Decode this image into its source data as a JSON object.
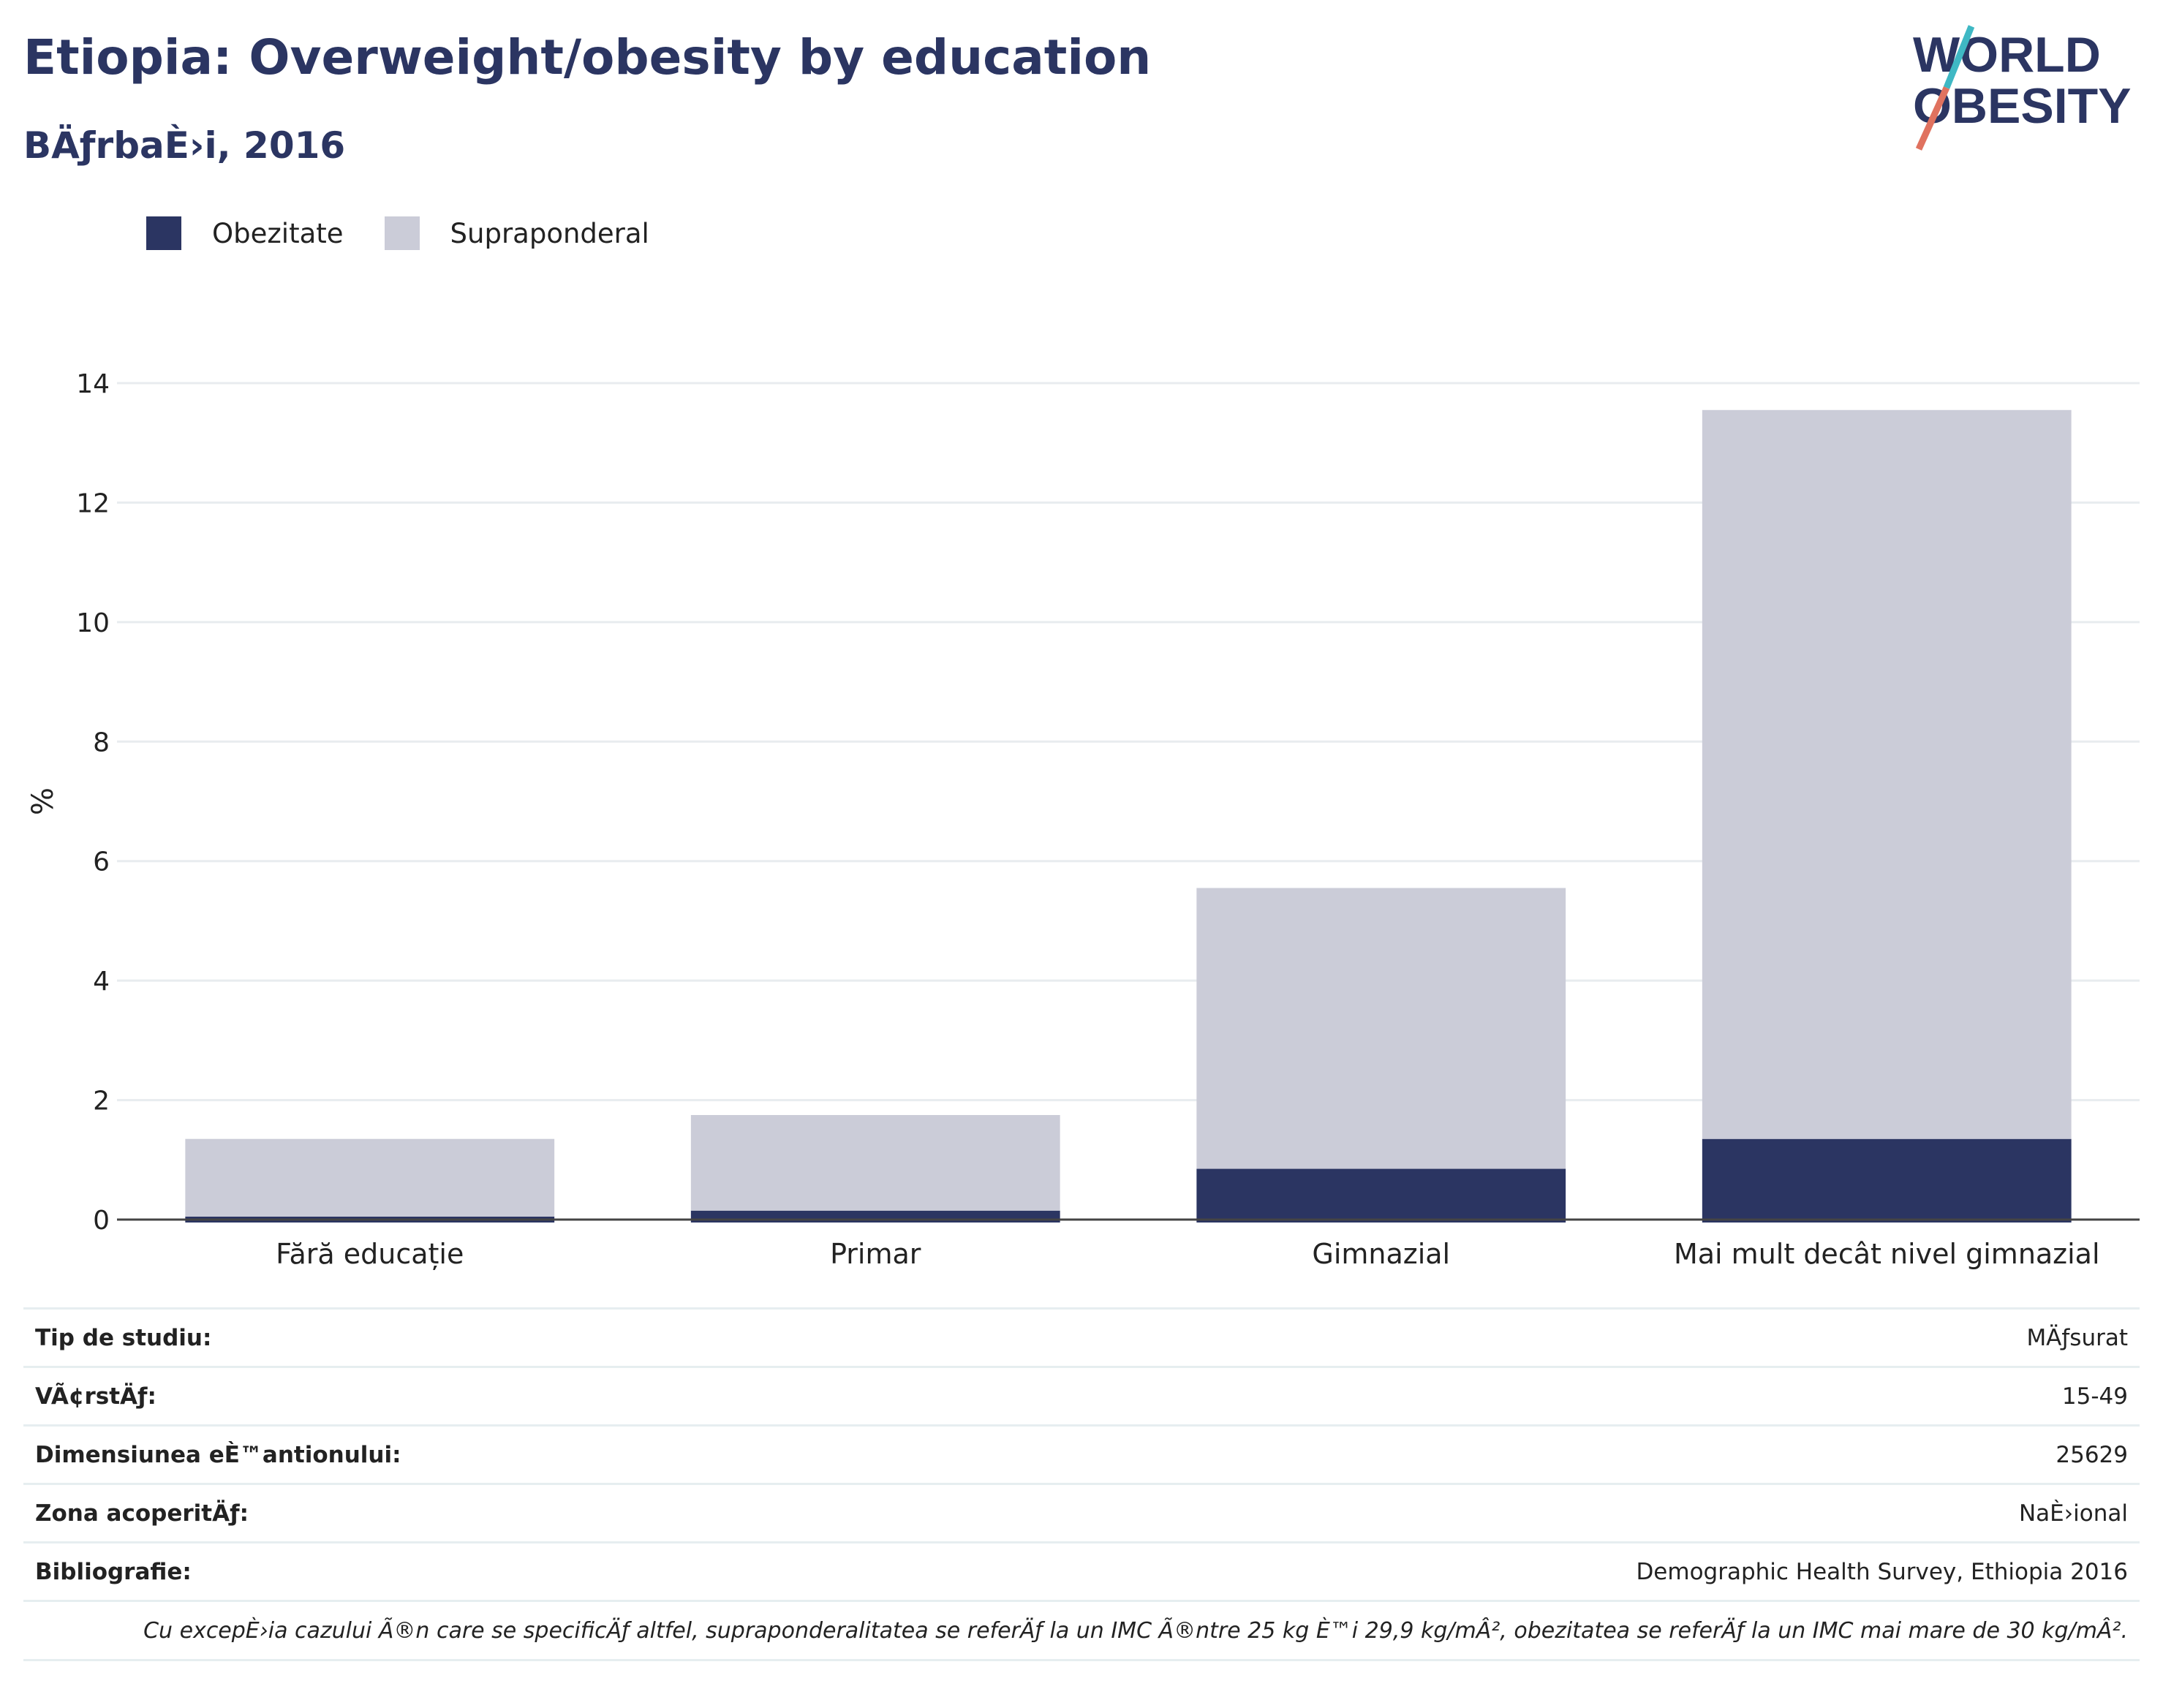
{
  "header": {
    "title": "Etiopia: Overweight/obesity by education",
    "subtitle": "BÄƒrbaÈ›i, 2016",
    "logo_line1": "WORLD",
    "logo_line2": "OBESITY"
  },
  "legend": [
    {
      "label": "Obezitate",
      "color": "#2b3562"
    },
    {
      "label": "Supraponderal",
      "color": "#cbccd8"
    }
  ],
  "chart_data": {
    "type": "bar",
    "stacked": true,
    "categories": [
      "Fără educație",
      "Primar",
      "Gimnazial",
      "Mai mult decât nivel gimnazial"
    ],
    "series": [
      {
        "name": "Obezitate",
        "values": [
          0.05,
          0.15,
          0.85,
          1.35
        ],
        "color": "#2b3562"
      },
      {
        "name": "Supraponderal",
        "values": [
          1.3,
          1.6,
          4.7,
          12.2
        ],
        "color": "#cbccd8"
      }
    ],
    "ylabel": "%",
    "ylim": [
      0,
      14
    ],
    "yticks": [
      0,
      2,
      4,
      6,
      8,
      10,
      12,
      14
    ],
    "grid": true,
    "legend_position": "top-left"
  },
  "meta": [
    {
      "label": "Tip de studiu:",
      "value": "MÄƒsurat"
    },
    {
      "label": "VÃ¢rstÄƒ:",
      "value": "15-49"
    },
    {
      "label": "Dimensiunea eÈ™antionului:",
      "value": "25629"
    },
    {
      "label": "Zona acoperitÄƒ:",
      "value": "NaÈ›ional"
    },
    {
      "label": "Bibliografie:",
      "value": "Demographic Health Survey, Ethiopia 2016"
    }
  ],
  "note": "Cu excepÈ›ia cazului Ã®n care se specificÄƒ altfel, supraponderalitatea se referÄƒ la un IMC Ã®ntre 25 kg È™i 29,9 kg/mÂ², obezitatea se referÄƒ la un IMC mai mare de 30 kg/mÂ²."
}
